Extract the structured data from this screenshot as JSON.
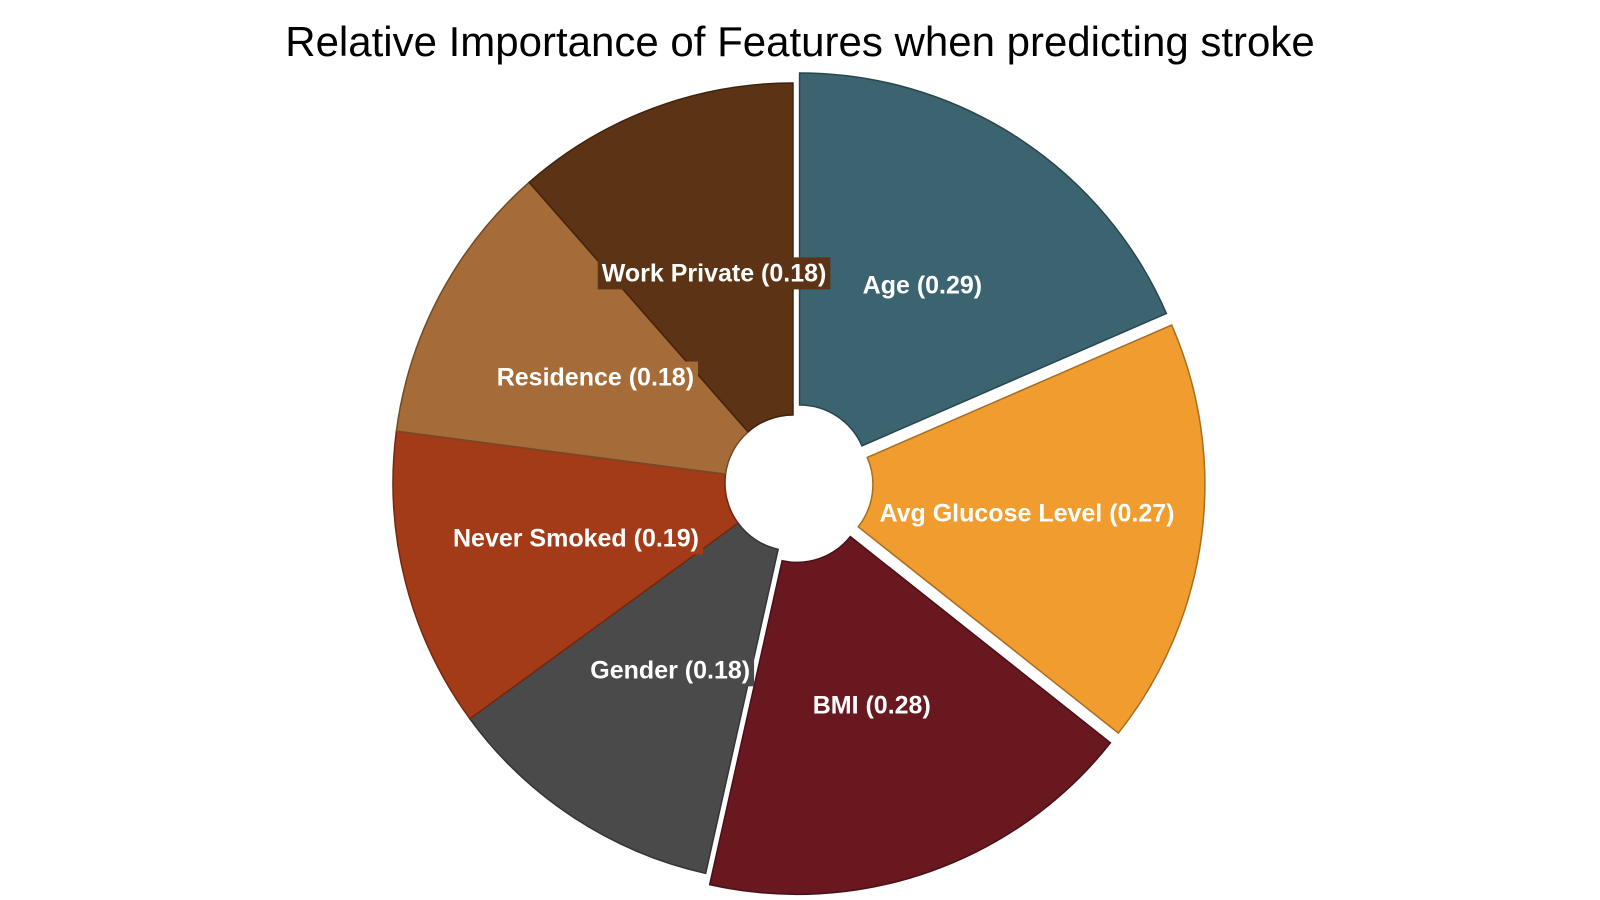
{
  "chart_data": {
    "type": "pie",
    "title": "Relative Importance of Features when predicting stroke",
    "slices": [
      {
        "label": "Age",
        "value": 0.29,
        "display": "Age (0.29)",
        "color": "#3b6470",
        "pulled": true
      },
      {
        "label": "Avg Glucose Level",
        "value": 0.27,
        "display": "Avg Glucose Level (0.27)",
        "color": "#f09c2e",
        "pulled": true
      },
      {
        "label": "BMI",
        "value": 0.28,
        "display": "BMI (0.28)",
        "color": "#68181e",
        "pulled": true
      },
      {
        "label": "Gender",
        "value": 0.18,
        "display": "Gender (0.18)",
        "color": "#4a4a4a",
        "pulled": false
      },
      {
        "label": "Never Smoked",
        "value": 0.19,
        "display": "Never Smoked (0.19)",
        "color": "#a43b18",
        "pulled": false
      },
      {
        "label": "Residence",
        "value": 0.18,
        "display": "Residence (0.18)",
        "color": "#a56b38",
        "pulled": false
      },
      {
        "label": "Work Private",
        "value": 0.18,
        "display": "Work Private (0.18)",
        "color": "#5c3314",
        "pulled": false
      }
    ],
    "hole": true,
    "legend": "none"
  }
}
